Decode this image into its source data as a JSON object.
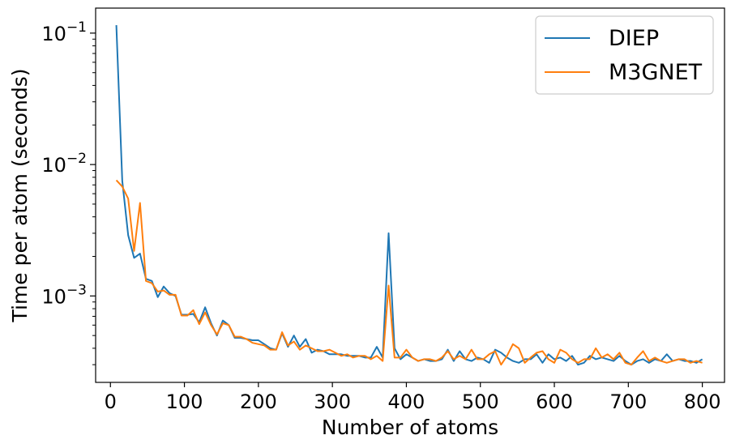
{
  "chart_data": {
    "type": "line",
    "title": "",
    "xlabel": "Number of atoms",
    "ylabel": "Time per atom (seconds)",
    "xlim": [
      -20,
      830
    ],
    "ylim": [
      0.00022,
      0.155
    ],
    "yscale": "log",
    "x_ticks": [
      0,
      100,
      200,
      300,
      400,
      500,
      600,
      700,
      800
    ],
    "y_ticks": [
      {
        "value": 0.001,
        "base": "10",
        "exp": "−3"
      },
      {
        "value": 0.01,
        "base": "10",
        "exp": "−2"
      },
      {
        "value": 0.1,
        "base": "10",
        "exp": "−1"
      }
    ],
    "grid": false,
    "legend_position": "top-right",
    "x": [
      8,
      16,
      24,
      32,
      40,
      48,
      56,
      64,
      72,
      80,
      88,
      96,
      104,
      112,
      120,
      128,
      136,
      144,
      152,
      160,
      168,
      176,
      184,
      192,
      200,
      208,
      216,
      224,
      232,
      240,
      248,
      256,
      264,
      272,
      280,
      288,
      296,
      304,
      312,
      320,
      328,
      336,
      344,
      352,
      360,
      368,
      376,
      384,
      392,
      400,
      408,
      416,
      424,
      432,
      440,
      448,
      456,
      464,
      472,
      480,
      488,
      496,
      504,
      512,
      520,
      528,
      536,
      544,
      552,
      560,
      568,
      576,
      584,
      592,
      600,
      608,
      616,
      624,
      632,
      640,
      648,
      656,
      664,
      672,
      680,
      688,
      696,
      704,
      712,
      720,
      728,
      736,
      744,
      752,
      760,
      768,
      776,
      784,
      792,
      800
    ],
    "series": [
      {
        "name": "DIEP",
        "color": "#1f77b4",
        "values": [
          0.115,
          0.0075,
          0.0029,
          0.00195,
          0.0021,
          0.00135,
          0.0013,
          0.00098,
          0.00118,
          0.00105,
          0.001,
          0.00072,
          0.00072,
          0.00073,
          0.00063,
          0.00082,
          0.00062,
          0.0005,
          0.00065,
          0.0006,
          0.00048,
          0.00048,
          0.00047,
          0.00046,
          0.00046,
          0.00043,
          0.0004,
          0.00039,
          0.00052,
          0.00041,
          0.0005,
          0.00041,
          0.00047,
          0.00037,
          0.00039,
          0.00038,
          0.00036,
          0.00036,
          0.00036,
          0.00035,
          0.00035,
          0.00035,
          0.00034,
          0.00034,
          0.00041,
          0.00034,
          0.003,
          0.0004,
          0.00033,
          0.00036,
          0.00034,
          0.00032,
          0.00033,
          0.00032,
          0.00032,
          0.00033,
          0.00039,
          0.00032,
          0.00038,
          0.00033,
          0.00032,
          0.00034,
          0.00033,
          0.00031,
          0.00039,
          0.00037,
          0.00034,
          0.00032,
          0.00031,
          0.00033,
          0.00033,
          0.00036,
          0.00031,
          0.00036,
          0.00033,
          0.00034,
          0.00032,
          0.00035,
          0.0003,
          0.00031,
          0.00035,
          0.00033,
          0.00034,
          0.00033,
          0.00032,
          0.00035,
          0.00032,
          0.0003,
          0.00032,
          0.00033,
          0.00031,
          0.00033,
          0.00032,
          0.00036,
          0.00032,
          0.00033,
          0.00032,
          0.00032,
          0.00031,
          0.00033
        ]
      },
      {
        "name": "M3GNET",
        "color": "#ff7f0e",
        "values": [
          0.0076,
          0.0068,
          0.0055,
          0.0022,
          0.0051,
          0.0013,
          0.00125,
          0.00108,
          0.0011,
          0.00102,
          0.00102,
          0.00071,
          0.00071,
          0.00078,
          0.00061,
          0.00075,
          0.0006,
          0.00051,
          0.00062,
          0.0006,
          0.00049,
          0.00049,
          0.00047,
          0.00044,
          0.00043,
          0.00042,
          0.00039,
          0.00039,
          0.00053,
          0.00042,
          0.00045,
          0.00039,
          0.00042,
          0.0004,
          0.00038,
          0.00038,
          0.00039,
          0.00037,
          0.00035,
          0.00036,
          0.00034,
          0.00035,
          0.00035,
          0.00033,
          0.00035,
          0.00032,
          0.0012,
          0.00034,
          0.00034,
          0.00039,
          0.00034,
          0.00032,
          0.00033,
          0.00033,
          0.00032,
          0.00034,
          0.00038,
          0.00033,
          0.00035,
          0.00033,
          0.00039,
          0.00033,
          0.00033,
          0.00036,
          0.00038,
          0.0003,
          0.00035,
          0.00043,
          0.0004,
          0.00031,
          0.00034,
          0.00037,
          0.00038,
          0.00033,
          0.00031,
          0.00039,
          0.00037,
          0.00033,
          0.00031,
          0.00033,
          0.00033,
          0.0004,
          0.00034,
          0.00036,
          0.00033,
          0.00037,
          0.00031,
          0.0003,
          0.00034,
          0.00038,
          0.00032,
          0.00034,
          0.00032,
          0.00031,
          0.00032,
          0.00033,
          0.00033,
          0.00031,
          0.00032,
          0.00031
        ]
      }
    ]
  }
}
